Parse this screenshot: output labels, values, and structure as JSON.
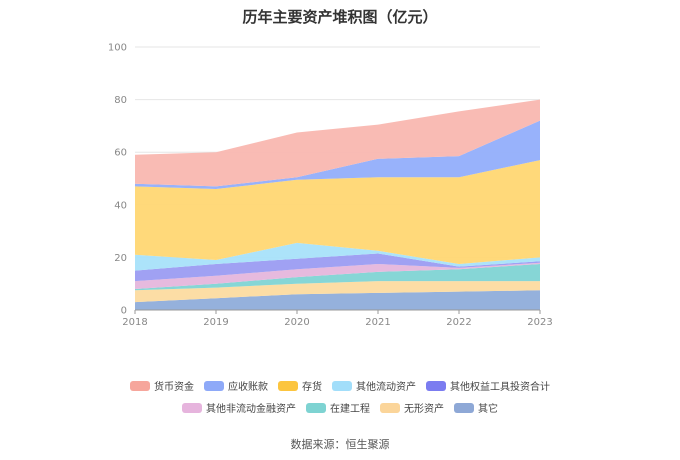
{
  "chart_data": {
    "type": "area",
    "title": "历年主要资产堆积图（亿元）",
    "x": [
      "2018",
      "2019",
      "2020",
      "2021",
      "2022",
      "2023"
    ],
    "ylim": [
      0,
      100
    ],
    "yticks": [
      0,
      20,
      40,
      60,
      80,
      100
    ],
    "series": [
      {
        "name": "其它",
        "color": "#8fadda",
        "values": [
          3,
          4.5,
          6,
          6.5,
          7,
          7.5
        ]
      },
      {
        "name": "无形资产",
        "color": "#fcdba0",
        "values": [
          4.5,
          4,
          4,
          4.5,
          4,
          3.5
        ]
      },
      {
        "name": "在建工程",
        "color": "#7fd4d4",
        "values": [
          0.5,
          1.5,
          2.5,
          3.5,
          4.5,
          6.5
        ]
      },
      {
        "name": "其他非流动金融资产",
        "color": "#e5b6dc",
        "values": [
          3,
          3,
          3,
          3,
          0.5,
          0.5
        ]
      },
      {
        "name": "其他权益工具投资合计",
        "color": "#9b9cf2",
        "values": [
          4,
          4.5,
          4,
          4,
          0.5,
          0.5
        ]
      },
      {
        "name": "其他流动资产",
        "color": "#a8e1fa",
        "values": [
          6,
          1.5,
          6,
          1,
          1,
          1.5
        ]
      },
      {
        "name": "存货",
        "color": "#ffd773",
        "values": [
          26,
          27,
          24,
          28,
          33,
          37
        ]
      },
      {
        "name": "应收账款",
        "color": "#92aefb",
        "values": [
          1,
          1,
          1,
          7,
          8,
          15
        ]
      },
      {
        "name": "货币资金",
        "color": "#f9b7b0",
        "values": [
          11,
          13,
          17,
          13,
          17,
          8
        ]
      }
    ]
  },
  "legend_rows": [
    [
      {
        "name": "货币资金",
        "color": "#f6a69c"
      },
      {
        "name": "应收账款",
        "color": "#8ea9f8"
      },
      {
        "name": "存货",
        "color": "#fcc53f"
      },
      {
        "name": "其他流动资产",
        "color": "#a2defa"
      },
      {
        "name": "其他权益工具投资合计",
        "color": "#7b7cf0"
      }
    ],
    [
      {
        "name": "其他非流动金融资产",
        "color": "#e6b4dd"
      },
      {
        "name": "在建工程",
        "color": "#7ed3d2"
      },
      {
        "name": "无形资产",
        "color": "#fbd59a"
      },
      {
        "name": "其它",
        "color": "#8ea8d6"
      }
    ]
  ],
  "source": "数据来源：恒生聚源"
}
